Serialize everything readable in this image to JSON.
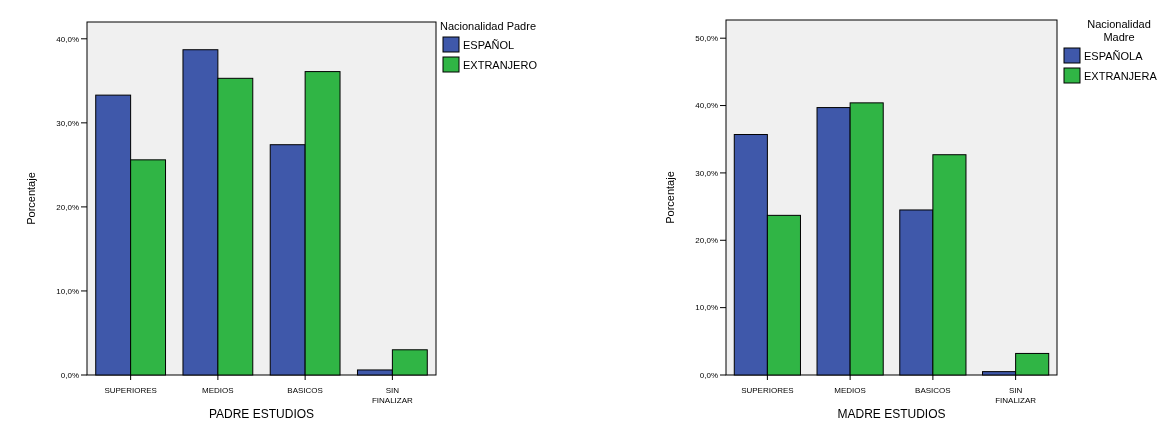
{
  "chart_data": [
    {
      "type": "bar",
      "xlabel": "PADRE ESTUDIOS",
      "ylabel": "Porcentaje",
      "legend_title": "Nacionalidad Padre",
      "legend": "top right",
      "grid": false,
      "categories": [
        "SUPERIORES",
        "MEDIOS",
        "BASICOS",
        "SIN FINALIZAR"
      ],
      "series": [
        {
          "name": "ESPAÑOL",
          "color": "#3f58aa",
          "values": [
            33.3,
            38.7,
            27.4,
            0.6
          ]
        },
        {
          "name": "EXTRANJERO",
          "color": "#30b545",
          "values": [
            25.6,
            35.3,
            36.1,
            3.0
          ]
        }
      ],
      "ylim": [
        0,
        42
      ],
      "yticks": [
        {
          "value": 0,
          "label": "0,0%"
        },
        {
          "value": 10,
          "label": "10,0%"
        },
        {
          "value": 20,
          "label": "20,0%"
        },
        {
          "value": 30,
          "label": "30,0%"
        },
        {
          "value": 40,
          "label": "40,0%"
        }
      ]
    },
    {
      "type": "bar",
      "xlabel": "MADRE ESTUDIOS",
      "ylabel": "Porcentaje",
      "legend_title": "Nacionalidad Madre",
      "legend": "top right",
      "grid": false,
      "categories": [
        "SUPERIORES",
        "MEDIOS",
        "BASICOS",
        "SIN FINALIZAR"
      ],
      "series": [
        {
          "name": "ESPAÑOLA",
          "color": "#3f58aa",
          "values": [
            35.7,
            39.7,
            24.5,
            0.5
          ]
        },
        {
          "name": "EXTRANJERA",
          "color": "#30b545",
          "values": [
            23.7,
            40.4,
            32.7,
            3.2
          ]
        }
      ],
      "ylim": [
        0,
        52.7
      ],
      "yticks": [
        {
          "value": 0,
          "label": "0,0%"
        },
        {
          "value": 10,
          "label": "10,0%"
        },
        {
          "value": 20,
          "label": "20,0%"
        },
        {
          "value": 30,
          "label": "30,0%"
        },
        {
          "value": 40,
          "label": "40,0%"
        },
        {
          "value": 50,
          "label": "50,0%"
        }
      ]
    }
  ]
}
